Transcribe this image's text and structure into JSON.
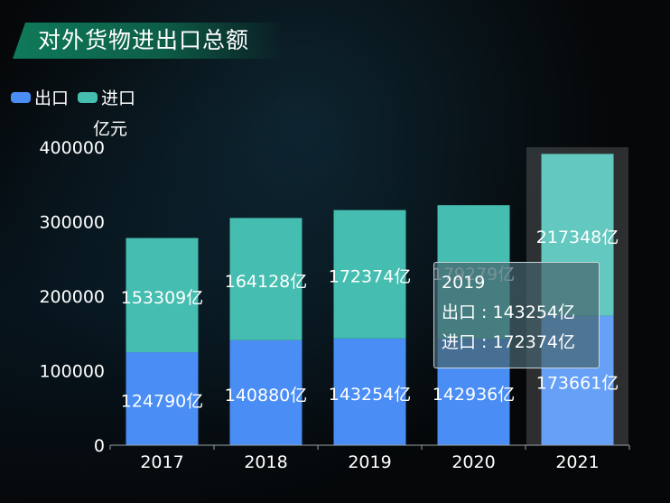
{
  "title": "对外货物进出口总额",
  "legend": [
    {
      "name": "出口",
      "color": "#4a8ef5"
    },
    {
      "name": "进口",
      "color": "#45bdb0"
    }
  ],
  "unit": "亿元",
  "tooltip": {
    "year": "2019",
    "export_line": "出口 : 143254亿",
    "import_line": "进口 : 172374亿"
  },
  "chart_data": {
    "type": "bar",
    "stacked": true,
    "categories": [
      "2017",
      "2018",
      "2019",
      "2020",
      "2021"
    ],
    "series": [
      {
        "name": "出口",
        "values": [
          124790,
          140880,
          143254,
          142936,
          173661
        ],
        "labels": [
          "124790亿",
          "140880亿",
          "143254亿",
          "142936亿",
          "173661亿"
        ],
        "color": "#4a8ef5"
      },
      {
        "name": "进口",
        "values": [
          153309,
          164128,
          172374,
          179279,
          217348
        ],
        "labels": [
          "153309亿",
          "164128亿",
          "172374亿",
          "179279亿",
          "217348亿"
        ],
        "color": "#45bdb0"
      }
    ],
    "ylim": [
      0,
      400000
    ],
    "yticks": [
      "0",
      "100000",
      "200000",
      "300000",
      "400000"
    ],
    "ylabel": "亿元",
    "highlighted_category": "2021"
  }
}
